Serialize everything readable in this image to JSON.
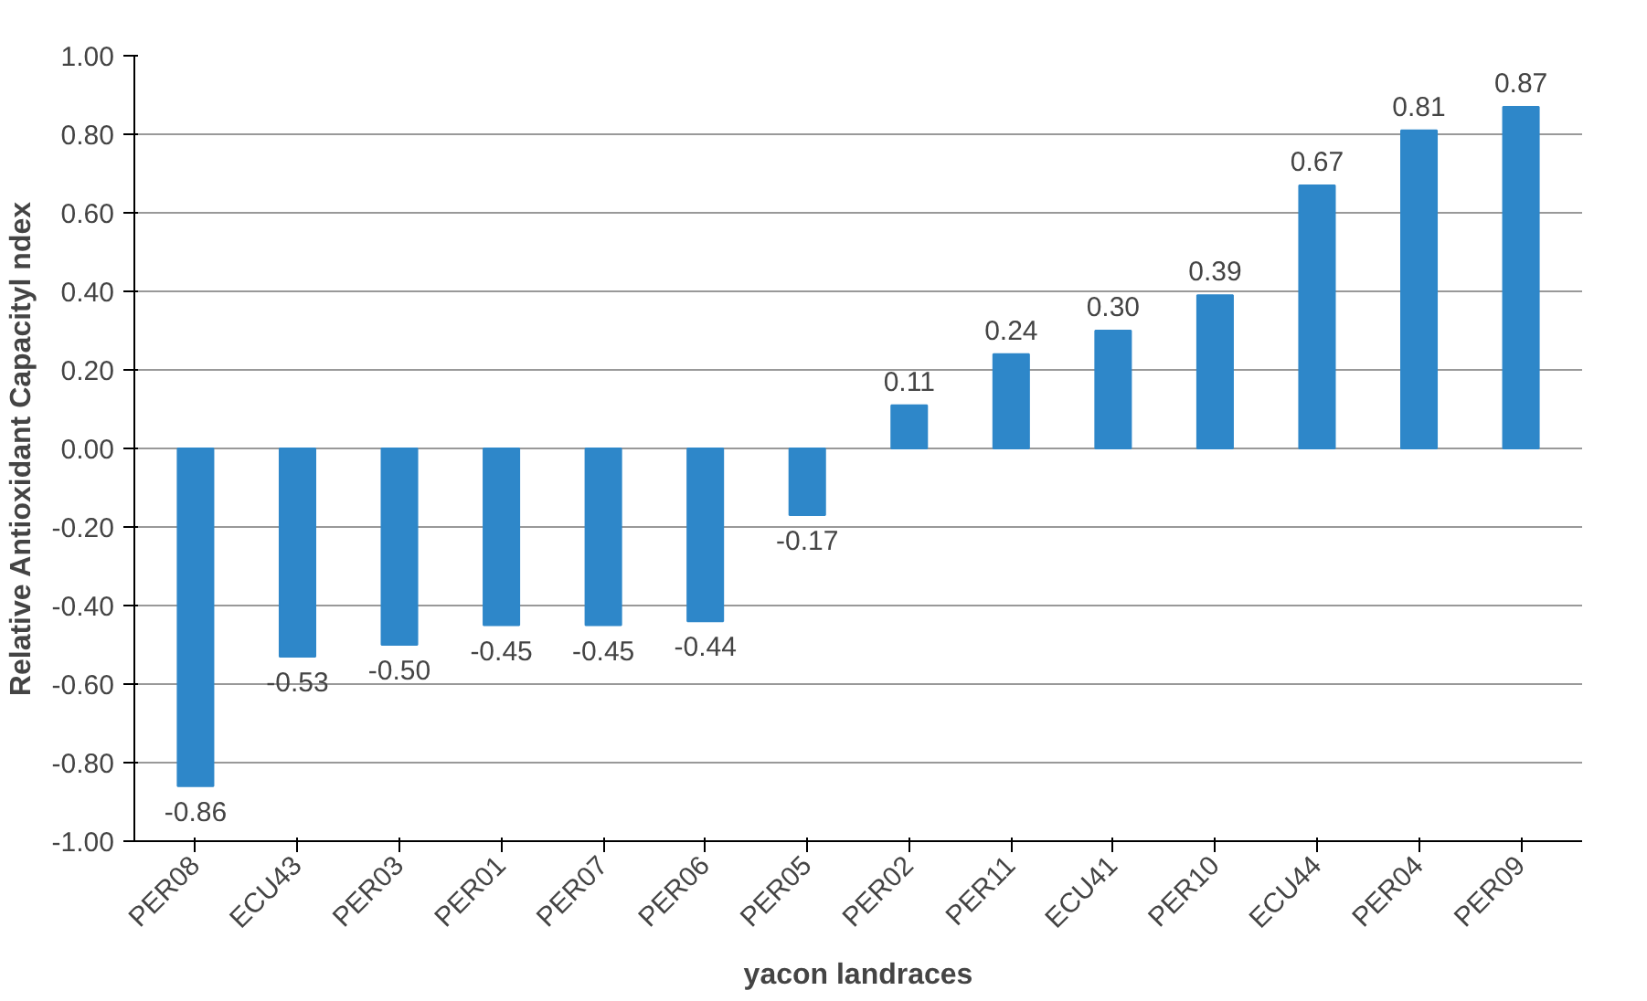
{
  "chart_data": {
    "type": "bar",
    "xlabel": "yacon landraces",
    "ylabel": "Relative Antioxidant Capacityl ndex",
    "categories": [
      "PER08",
      "ECU43",
      "PER03",
      "PER01",
      "PER07",
      "PER06",
      "PER05",
      "PER02",
      "PER11",
      "ECU41",
      "PER10",
      "ECU44",
      "PER04",
      "PER09"
    ],
    "values": [
      -0.86,
      -0.53,
      -0.5,
      -0.45,
      -0.45,
      -0.44,
      -0.17,
      0.11,
      0.24,
      0.3,
      0.39,
      0.67,
      0.81,
      0.87
    ],
    "value_labels": [
      "-0.86",
      "-0.53",
      "-0.50",
      "-0.45",
      "-0.45",
      "-0.44",
      "-0.17",
      "0.11",
      "0.24",
      "0.30",
      "0.39",
      "0.67",
      "0.81",
      "0.87"
    ],
    "color": "#2e87c9",
    "ylim": [
      -1.0,
      1.0
    ],
    "yticks": [
      {
        "value": -1.0,
        "label": "-1.00"
      },
      {
        "value": -0.8,
        "label": "-0.80"
      },
      {
        "value": -0.6,
        "label": "-0.60"
      },
      {
        "value": -0.4,
        "label": "-0.40"
      },
      {
        "value": -0.2,
        "label": "-0.20"
      },
      {
        "value": 0.0,
        "label": "0.00"
      },
      {
        "value": 0.2,
        "label": "0.20"
      },
      {
        "value": 0.4,
        "label": "0.40"
      },
      {
        "value": 0.6,
        "label": "0.60"
      },
      {
        "value": 0.8,
        "label": "0.80"
      },
      {
        "value": 1.0,
        "label": "1.00"
      }
    ],
    "grid": "y"
  }
}
